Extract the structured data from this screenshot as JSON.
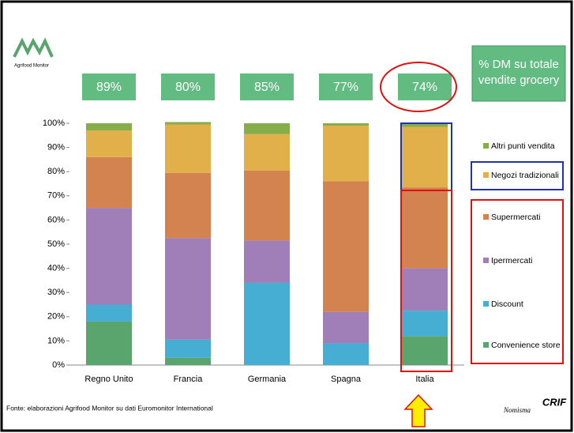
{
  "logo": "Agrifood Monitor",
  "source": "Fonte: elaborazioni Agrifood Monitor su dati Euromonitor International",
  "logos_right": [
    "Nomisma",
    "CRIF"
  ],
  "chart_data": {
    "type": "stacked_bar",
    "title": "% DM su totale vendite grocery",
    "top_labels": [
      "89%",
      "80%",
      "85%",
      "77%",
      "74%"
    ],
    "categories": [
      "Regno Unito",
      "Francia",
      "Germania",
      "Spagna",
      "Italia"
    ],
    "series": [
      {
        "name": "Convenience store",
        "color": "#5aa56e",
        "values": [
          18,
          3,
          0,
          0,
          12
        ]
      },
      {
        "name": "Discount",
        "color": "#45aed2",
        "values": [
          7,
          7.5,
          34,
          9,
          10.5
        ]
      },
      {
        "name": "Ipermercati",
        "color": "#a07fb8",
        "values": [
          40,
          42,
          17.5,
          13,
          17.5
        ]
      },
      {
        "name": "Supermercati",
        "color": "#d2834f",
        "values": [
          21,
          27,
          29,
          54,
          33.5
        ]
      },
      {
        "name": "Negozi tradizionali",
        "color": "#e2b04a",
        "values": [
          11,
          20,
          15,
          23,
          25
        ]
      },
      {
        "name": "Altri punti vendita",
        "color": "#86ad4a",
        "values": [
          3,
          1,
          4.5,
          1,
          1.5
        ]
      }
    ],
    "ylim": [
      0,
      100
    ],
    "yticks": [
      {
        "value": 0,
        "label": "0%"
      },
      {
        "value": 10,
        "label": "10%"
      },
      {
        "value": 20,
        "label": "20%"
      },
      {
        "value": 30,
        "label": "30%"
      },
      {
        "value": 40,
        "label": "40%"
      },
      {
        "value": 50,
        "label": "50%"
      },
      {
        "value": 60,
        "label": "60%"
      },
      {
        "value": 70,
        "label": "70%"
      },
      {
        "value": 80,
        "label": "80%"
      },
      {
        "value": 90,
        "label": "90%"
      },
      {
        "value": 100,
        "label": "100%"
      }
    ]
  }
}
